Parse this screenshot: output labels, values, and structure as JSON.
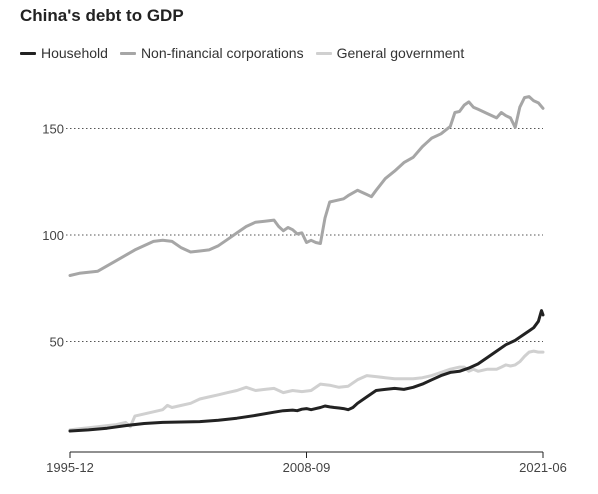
{
  "title": "China's debt to GDP",
  "legend": [
    {
      "label": "Household",
      "color": "#222222"
    },
    {
      "label": "Non-financial corporations",
      "color": "#a6a6a6"
    },
    {
      "label": "General government",
      "color": "#d0d0d0"
    }
  ],
  "chart_data": {
    "type": "line",
    "title": "China's debt to GDP",
    "xlabel": "",
    "ylabel": "",
    "ylim": [
      0,
      170
    ],
    "xlim": [
      "1995-12",
      "2021-06"
    ],
    "yticks": [
      50,
      100,
      150
    ],
    "ytick_labels": [
      "50",
      "100",
      "150"
    ],
    "xtick_labels": [
      "1995-12",
      "2008-09",
      "2021-06"
    ],
    "grid": "horizontal dotted",
    "legend_position": "top-left",
    "series": [
      {
        "name": "Household",
        "color": "#222222",
        "points": [
          [
            "1995-12",
            8.0
          ],
          [
            "1996-12",
            8.5
          ],
          [
            "1997-12",
            9.3
          ],
          [
            "1998-12",
            10.5
          ],
          [
            "1999-12",
            11.5
          ],
          [
            "2000-12",
            12.0
          ],
          [
            "2001-12",
            12.2
          ],
          [
            "2002-12",
            12.4
          ],
          [
            "2003-12",
            13.0
          ],
          [
            "2004-12",
            14.0
          ],
          [
            "2005-12",
            15.3
          ],
          [
            "2006-12",
            16.8
          ],
          [
            "2007-06",
            17.5
          ],
          [
            "2007-12",
            17.8
          ],
          [
            "2008-03",
            17.5
          ],
          [
            "2008-06",
            18.2
          ],
          [
            "2008-09",
            18.5
          ],
          [
            "2008-12",
            18.0
          ],
          [
            "2009-03",
            18.5
          ],
          [
            "2009-06",
            19.0
          ],
          [
            "2009-09",
            19.7
          ],
          [
            "2009-12",
            19.3
          ],
          [
            "2010-03",
            19.0
          ],
          [
            "2010-06",
            18.8
          ],
          [
            "2010-09",
            18.5
          ],
          [
            "2010-12",
            18.0
          ],
          [
            "2011-03",
            19.0
          ],
          [
            "2011-06",
            21.0
          ],
          [
            "2011-12",
            24.0
          ],
          [
            "2012-06",
            27.0
          ],
          [
            "2012-12",
            27.5
          ],
          [
            "2013-06",
            28.0
          ],
          [
            "2013-12",
            27.5
          ],
          [
            "2014-06",
            28.5
          ],
          [
            "2014-12",
            30.0
          ],
          [
            "2015-06",
            32.0
          ],
          [
            "2015-12",
            34.0
          ],
          [
            "2016-06",
            35.5
          ],
          [
            "2016-12",
            36.0
          ],
          [
            "2017-06",
            37.5
          ],
          [
            "2017-12",
            39.5
          ],
          [
            "2018-06",
            42.5
          ],
          [
            "2018-12",
            45.5
          ],
          [
            "2019-06",
            48.5
          ],
          [
            "2019-12",
            50.5
          ],
          [
            "2020-03",
            52.0
          ],
          [
            "2020-06",
            53.5
          ],
          [
            "2020-09",
            55.0
          ],
          [
            "2020-12",
            56.5
          ],
          [
            "2021-03",
            59.5
          ],
          [
            "2021-05",
            64.5
          ],
          [
            "2021-06",
            62.5
          ]
        ]
      },
      {
        "name": "Non-financial corporations",
        "color": "#a6a6a6",
        "points": [
          [
            "1995-12",
            81.0
          ],
          [
            "1996-06",
            82.0
          ],
          [
            "1997-06",
            83.0
          ],
          [
            "1998-06",
            88.0
          ],
          [
            "1999-06",
            93.0
          ],
          [
            "2000-06",
            97.0
          ],
          [
            "2000-12",
            97.5
          ],
          [
            "2001-06",
            97.0
          ],
          [
            "2001-12",
            94.0
          ],
          [
            "2002-06",
            92.0
          ],
          [
            "2002-12",
            92.5
          ],
          [
            "2003-06",
            93.0
          ],
          [
            "2003-12",
            95.0
          ],
          [
            "2004-06",
            98.0
          ],
          [
            "2004-12",
            101.0
          ],
          [
            "2005-06",
            104.0
          ],
          [
            "2005-12",
            106.0
          ],
          [
            "2006-06",
            106.5
          ],
          [
            "2006-12",
            107.0
          ],
          [
            "2007-03",
            104.0
          ],
          [
            "2007-06",
            102.0
          ],
          [
            "2007-09",
            103.5
          ],
          [
            "2007-12",
            102.5
          ],
          [
            "2008-03",
            100.5
          ],
          [
            "2008-06",
            101.0
          ],
          [
            "2008-09",
            96.5
          ],
          [
            "2008-12",
            97.5
          ],
          [
            "2009-03",
            96.5
          ],
          [
            "2009-06",
            96.0
          ],
          [
            "2009-09",
            108.0
          ],
          [
            "2009-12",
            115.5
          ],
          [
            "2010-03",
            116.0
          ],
          [
            "2010-09",
            117.0
          ],
          [
            "2010-12",
            118.5
          ],
          [
            "2011-06",
            121.0
          ],
          [
            "2011-12",
            119.0
          ],
          [
            "2012-03",
            118.0
          ],
          [
            "2012-06",
            121.0
          ],
          [
            "2012-12",
            126.5
          ],
          [
            "2013-06",
            130.0
          ],
          [
            "2013-12",
            134.0
          ],
          [
            "2014-06",
            136.5
          ],
          [
            "2014-12",
            141.5
          ],
          [
            "2015-03",
            143.5
          ],
          [
            "2015-06",
            145.5
          ],
          [
            "2015-12",
            147.5
          ],
          [
            "2016-06",
            151.0
          ],
          [
            "2016-09",
            157.5
          ],
          [
            "2016-12",
            158.0
          ],
          [
            "2017-03",
            161.0
          ],
          [
            "2017-06",
            162.5
          ],
          [
            "2017-09",
            160.0
          ],
          [
            "2017-12",
            159.0
          ],
          [
            "2018-06",
            157.0
          ],
          [
            "2018-12",
            155.0
          ],
          [
            "2019-03",
            157.5
          ],
          [
            "2019-06",
            156.0
          ],
          [
            "2019-09",
            155.0
          ],
          [
            "2019-12",
            150.5
          ],
          [
            "2020-03",
            160.0
          ],
          [
            "2020-06",
            164.5
          ],
          [
            "2020-09",
            165.0
          ],
          [
            "2020-12",
            163.0
          ],
          [
            "2021-03",
            162.0
          ],
          [
            "2021-06",
            159.5
          ]
        ]
      },
      {
        "name": "General government",
        "color": "#d0d0d0",
        "points": [
          [
            "1995-12",
            8.5
          ],
          [
            "1996-06",
            9.0
          ],
          [
            "1996-12",
            9.5
          ],
          [
            "1997-06",
            10.0
          ],
          [
            "1997-12",
            10.5
          ],
          [
            "1998-06",
            11.0
          ],
          [
            "1998-12",
            12.0
          ],
          [
            "1999-03",
            10.0
          ],
          [
            "1999-06",
            15.0
          ],
          [
            "1999-12",
            16.0
          ],
          [
            "2000-06",
            17.0
          ],
          [
            "2000-12",
            18.0
          ],
          [
            "2001-03",
            20.0
          ],
          [
            "2001-06",
            19.0
          ],
          [
            "2001-12",
            20.0
          ],
          [
            "2002-06",
            21.0
          ],
          [
            "2002-12",
            23.0
          ],
          [
            "2003-06",
            24.0
          ],
          [
            "2003-12",
            25.0
          ],
          [
            "2004-06",
            26.0
          ],
          [
            "2004-12",
            27.0
          ],
          [
            "2005-06",
            28.5
          ],
          [
            "2005-12",
            27.0
          ],
          [
            "2006-06",
            27.5
          ],
          [
            "2006-12",
            28.0
          ],
          [
            "2007-06",
            26.0
          ],
          [
            "2007-12",
            27.0
          ],
          [
            "2008-06",
            26.5
          ],
          [
            "2008-12",
            27.0
          ],
          [
            "2009-06",
            30.0
          ],
          [
            "2009-12",
            29.5
          ],
          [
            "2010-06",
            28.5
          ],
          [
            "2010-12",
            29.0
          ],
          [
            "2011-06",
            32.0
          ],
          [
            "2011-12",
            34.0
          ],
          [
            "2012-06",
            33.5
          ],
          [
            "2012-12",
            33.0
          ],
          [
            "2013-06",
            32.5
          ],
          [
            "2013-12",
            32.5
          ],
          [
            "2014-06",
            32.5
          ],
          [
            "2014-12",
            33.0
          ],
          [
            "2015-06",
            34.0
          ],
          [
            "2015-12",
            35.5
          ],
          [
            "2016-06",
            37.0
          ],
          [
            "2016-12",
            38.0
          ],
          [
            "2017-03",
            38.0
          ],
          [
            "2017-06",
            36.0
          ],
          [
            "2017-09",
            37.0
          ],
          [
            "2017-12",
            36.0
          ],
          [
            "2018-06",
            37.0
          ],
          [
            "2018-12",
            37.0
          ],
          [
            "2019-03",
            38.0
          ],
          [
            "2019-06",
            39.0
          ],
          [
            "2019-09",
            38.5
          ],
          [
            "2019-12",
            39.0
          ],
          [
            "2020-03",
            40.5
          ],
          [
            "2020-06",
            43.0
          ],
          [
            "2020-09",
            45.0
          ],
          [
            "2020-12",
            45.5
          ],
          [
            "2021-03",
            45.0
          ],
          [
            "2021-06",
            45.0
          ]
        ]
      }
    ]
  }
}
